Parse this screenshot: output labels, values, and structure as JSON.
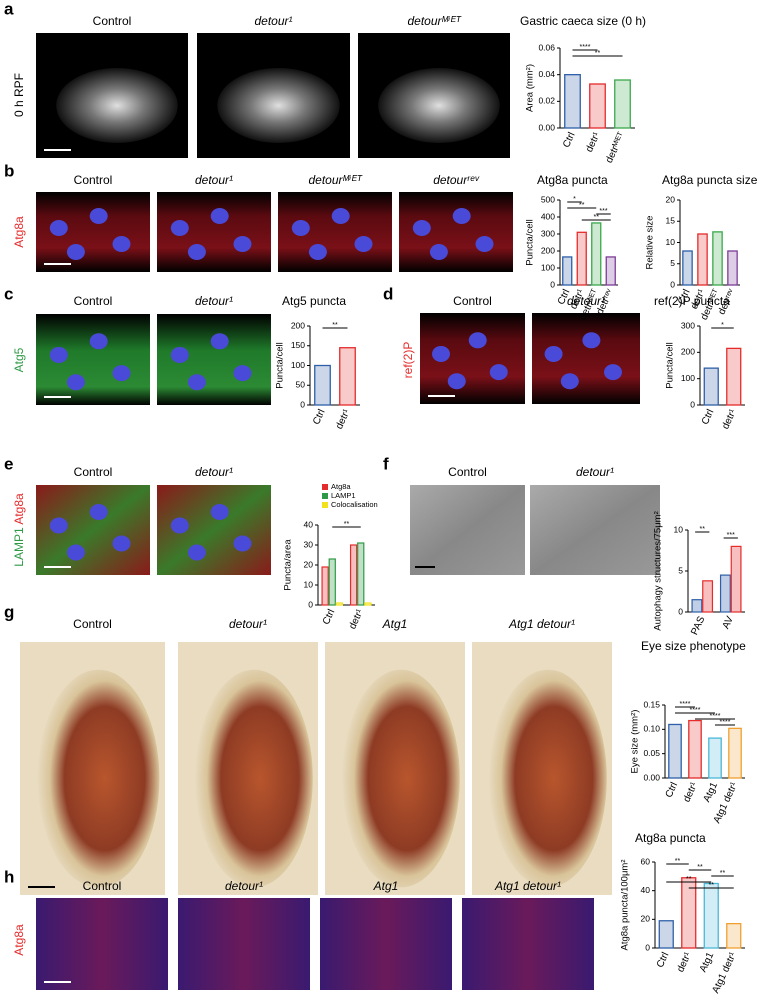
{
  "panels": [
    {
      "letter": "a",
      "side_label": [
        "0 h RPF"
      ],
      "columns": [
        "Control",
        "detour¹",
        "detourᴹⁱᴱᵀ"
      ]
    },
    {
      "letter": "b",
      "side_label": [
        "Atg8a"
      ],
      "columns": [
        "Control",
        "detour¹",
        "detourᴹⁱᴱᵀ",
        "detourʳᵉᵛ"
      ]
    },
    {
      "letter": "c",
      "side_label": [
        "Atg5"
      ],
      "columns": [
        "Control",
        "detour¹"
      ]
    },
    {
      "letter": "d",
      "side_label": [
        "ref(2)P"
      ],
      "columns": [
        "Control",
        "detour¹"
      ]
    },
    {
      "letter": "e",
      "side_label": [
        "LAMP1",
        "Atg8a"
      ],
      "columns": [
        "Control",
        "detour¹"
      ]
    },
    {
      "letter": "f",
      "side_label": [],
      "columns": [
        "Control",
        "detour¹"
      ]
    },
    {
      "letter": "g",
      "side_label": [],
      "columns": [
        "Control",
        "detour¹",
        "Atg1",
        "Atg1 detour¹"
      ]
    },
    {
      "letter": "h",
      "side_label": [
        "Atg8a"
      ],
      "columns": [
        "Control",
        "detour¹",
        "Atg1",
        "Atg1 detour¹"
      ]
    }
  ],
  "chart_data": [
    {
      "type": "bar",
      "title": "Gastric caeca size (0 h)",
      "y_label": "Area (mm²)",
      "categories": [
        "Ctrl",
        "detr¹",
        "detrᴹⁱᴱᵀ"
      ],
      "values": [
        0.04,
        0.033,
        0.036
      ],
      "colors": [
        "#2e5fa8",
        "#e52b2b",
        "#3aa84b"
      ],
      "ylim": [
        0,
        0.06
      ],
      "yticks": [
        {
          "value": 0,
          "label": "0.00"
        },
        0.02,
        0.04,
        0.06
      ],
      "annotations": [
        "****",
        "**"
      ]
    },
    {
      "type": "bar",
      "title": "Atg8a puncta",
      "y_label": "Puncta/cell",
      "categories": [
        "Ctrl",
        "detr¹",
        "detrᴹⁱᴱᵀ",
        "detrʳᵉᵛ"
      ],
      "values": [
        165,
        310,
        365,
        165
      ],
      "colors": [
        "#2e5fa8",
        "#e52b2b",
        "#3aa84b",
        "#7d3c98"
      ],
      "ylim": [
        0,
        500
      ],
      "yticks": [
        0,
        100,
        200,
        300,
        400,
        500
      ],
      "annotations": [
        "*",
        "**",
        "***",
        "**"
      ]
    },
    {
      "type": "bar",
      "title": "Atg8a puncta size",
      "y_label": "Relative size",
      "categories": [
        "Ctrl",
        "detr¹",
        "detrᴹⁱᴱᵀ",
        "detrʳᵉᵛ"
      ],
      "values": [
        8,
        12,
        12.5,
        8
      ],
      "colors": [
        "#2e5fa8",
        "#e52b2b",
        "#3aa84b",
        "#7d3c98"
      ],
      "ylim": [
        0,
        20
      ],
      "yticks": [
        0,
        5,
        10,
        15,
        20
      ],
      "annotations": []
    },
    {
      "type": "bar",
      "title": "Atg5 puncta",
      "y_label": "Puncta/cell",
      "categories": [
        "Ctrl",
        "detr¹"
      ],
      "values": [
        100,
        145
      ],
      "colors": [
        "#2e5fa8",
        "#e52b2b"
      ],
      "ylim": [
        0,
        200
      ],
      "yticks": [
        0,
        50,
        100,
        150,
        200
      ],
      "annotations": [
        "**"
      ]
    },
    {
      "type": "bar",
      "title": "ref(2)P puncta",
      "y_label": "Puncta/cell",
      "categories": [
        "Ctrl",
        "detr¹"
      ],
      "values": [
        140,
        215
      ],
      "colors": [
        "#2e5fa8",
        "#e52b2b"
      ],
      "ylim": [
        0,
        300
      ],
      "yticks": [
        0,
        100,
        200,
        300
      ],
      "annotations": [
        "*"
      ]
    },
    {
      "type": "grouped_bar",
      "y_label": "Puncta/area",
      "categories": [
        "Ctrl",
        "detr¹"
      ],
      "series": [
        {
          "name": "Atg8a",
          "color": "#e52b2b",
          "values": [
            19,
            30
          ]
        },
        {
          "name": "LAMP1",
          "color": "#2e9a45",
          "values": [
            23,
            31
          ]
        },
        {
          "name": "Colocalisation",
          "color": "#f2e21b",
          "values": [
            1,
            1
          ]
        }
      ],
      "ylim": [
        0,
        40
      ],
      "yticks": [
        0,
        10,
        20,
        30,
        40
      ],
      "annotations": [
        "**"
      ]
    },
    {
      "type": "grouped_bar",
      "y_label": "Autophagy structures/75μm²",
      "categories": [
        "PAS",
        "AV"
      ],
      "series": [
        {
          "color": "#2e5fa8",
          "values": [
            1.5,
            4.5
          ]
        },
        {
          "color": "#e52b2b",
          "values": [
            3.8,
            8
          ]
        }
      ],
      "ylim": [
        0,
        10
      ],
      "yticks": [
        0,
        5,
        10
      ],
      "annotations": [
        "**",
        "***"
      ]
    },
    {
      "type": "bar",
      "title": "Eye size phenotype",
      "y_label": "Eye size (mm²)",
      "categories": [
        "Ctrl",
        "detr¹",
        "Atg1",
        "Atg1 detr¹"
      ],
      "values": [
        0.11,
        0.118,
        0.082,
        0.102
      ],
      "colors": [
        "#2e5fa8",
        "#e52b2b",
        "#4ab8d8",
        "#f0a030"
      ],
      "ylim": [
        0,
        0.15
      ],
      "yticks": [
        {
          "value": 0,
          "label": "0.00"
        },
        0.05,
        {
          "value": 0.1,
          "label": "0.10"
        },
        0.15
      ],
      "annotations": [
        "****",
        "****",
        "****",
        "****"
      ]
    },
    {
      "type": "bar",
      "title": "Atg8a puncta",
      "y_label": "Atg8a puncta/100μm²",
      "categories": [
        "Ctrl",
        "detr¹",
        "Atg1",
        "Atg1 detr¹"
      ],
      "values": [
        19,
        49,
        45,
        17
      ],
      "colors": [
        "#2e5fa8",
        "#e52b2b",
        "#4ab8d8",
        "#f0a030"
      ],
      "ylim": [
        0,
        60
      ],
      "yticks": [
        0,
        20,
        40,
        60
      ],
      "annotations": [
        "**",
        "**",
        "**",
        "**",
        "**"
      ]
    }
  ]
}
